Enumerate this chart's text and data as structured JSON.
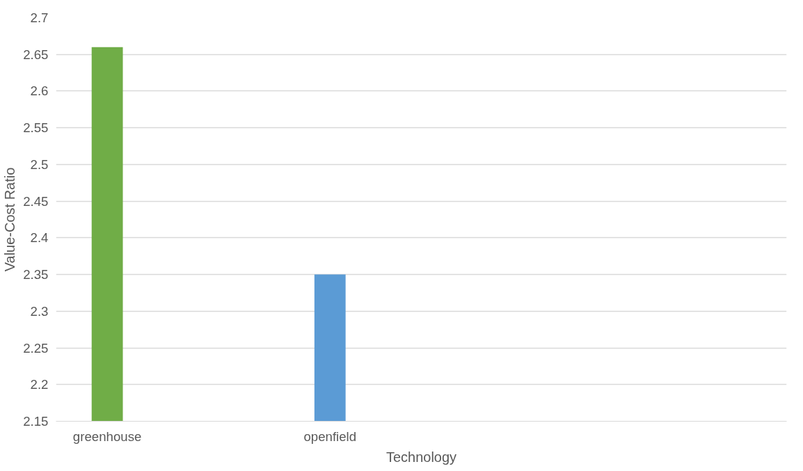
{
  "chart_data": {
    "type": "bar",
    "xlabel": "Technology",
    "ylabel": "Value-Cost Ratio",
    "categories": [
      "greenhouse",
      "openfield"
    ],
    "values": [
      2.66,
      2.35
    ],
    "colors": [
      "#70ad47",
      "#5b9bd5"
    ],
    "ylim": [
      2.15,
      2.7
    ],
    "yticks": [
      2.15,
      2.2,
      2.25,
      2.3,
      2.35,
      2.4,
      2.45,
      2.5,
      2.55,
      2.6,
      2.65,
      2.7
    ],
    "grid": "y"
  }
}
